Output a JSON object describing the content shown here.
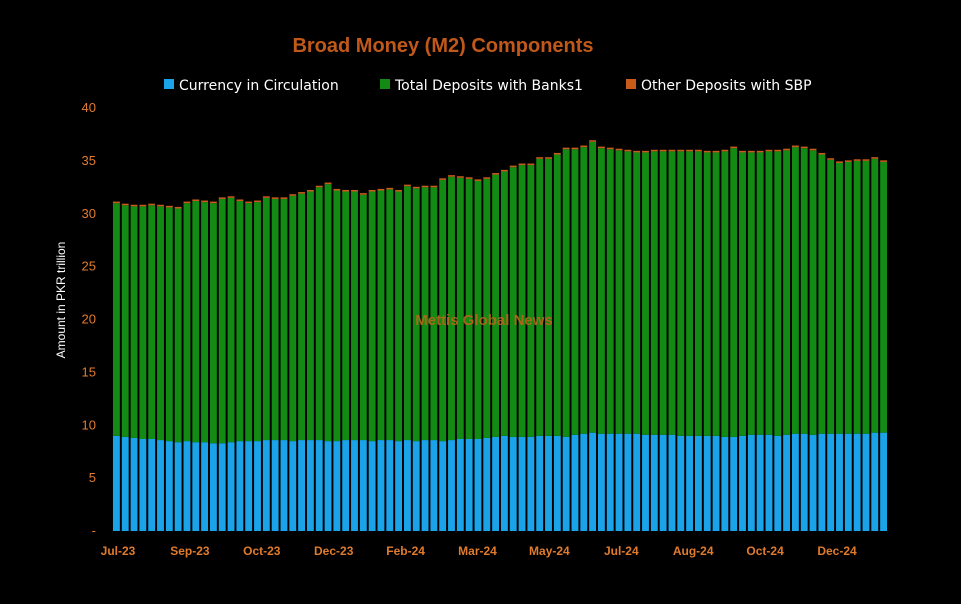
{
  "colors": {
    "background": "#000000",
    "plot_area": "#000000",
    "title": "#c0581a",
    "tick_labels": "#e07b2e",
    "currency": "#1aa3e8",
    "deposits": "#138a13",
    "sbp": "#c85a1a",
    "watermark": "#b8661a"
  },
  "watermark": "Mettis Global News",
  "chart_data": {
    "type": "bar",
    "stacked": true,
    "title": "Broad Money (M2) Components",
    "ylabel": "Amount in PKR trillion",
    "xlabel": "",
    "ylim": [
      0,
      40
    ],
    "yticks": [
      "-",
      "5",
      "10",
      "15",
      "20",
      "25",
      "30",
      "35",
      "40"
    ],
    "xtick_labels": [
      "Jul-23",
      "Sep-23",
      "Oct-23",
      "Dec-23",
      "Feb-24",
      "Mar-24",
      "May-24",
      "Jul-24",
      "Aug-24",
      "Oct-24",
      "Dec-24"
    ],
    "grid": false,
    "legend_position": "top",
    "series": [
      {
        "name": "Currency in Circulation",
        "values": [
          9.0,
          8.9,
          8.8,
          8.7,
          8.7,
          8.6,
          8.5,
          8.4,
          8.5,
          8.4,
          8.4,
          8.3,
          8.3,
          8.4,
          8.5,
          8.5,
          8.5,
          8.6,
          8.6,
          8.6,
          8.5,
          8.6,
          8.6,
          8.6,
          8.5,
          8.5,
          8.6,
          8.6,
          8.6,
          8.5,
          8.6,
          8.6,
          8.5,
          8.6,
          8.5,
          8.6,
          8.6,
          8.5,
          8.6,
          8.7,
          8.7,
          8.7,
          8.8,
          8.9,
          9.0,
          8.9,
          8.9,
          8.9,
          9.0,
          9.0,
          9.0,
          8.9,
          9.1,
          9.2,
          9.3,
          9.2,
          9.2,
          9.2,
          9.2,
          9.2,
          9.1,
          9.1,
          9.1,
          9.1,
          9.0,
          9.0,
          9.0,
          9.0,
          9.0,
          8.9,
          8.9,
          9.0,
          9.1,
          9.1,
          9.1,
          9.0,
          9.1,
          9.2,
          9.2,
          9.1,
          9.2,
          9.2,
          9.2,
          9.2,
          9.2,
          9.2,
          9.3,
          9.3
        ]
      },
      {
        "name": "Total Deposits with Banks1",
        "values": [
          22.0,
          21.9,
          21.9,
          22.0,
          22.1,
          22.1,
          22.1,
          22.1,
          22.5,
          22.8,
          22.7,
          22.7,
          23.1,
          23.1,
          22.7,
          22.5,
          22.6,
          22.9,
          22.8,
          22.8,
          23.2,
          23.3,
          23.5,
          23.9,
          24.3,
          23.7,
          23.5,
          23.5,
          23.2,
          23.6,
          23.6,
          23.7,
          23.6,
          24.0,
          23.9,
          23.9,
          23.9,
          24.7,
          24.9,
          24.7,
          24.6,
          24.4,
          24.5,
          24.8,
          25.0,
          25.5,
          25.7,
          25.7,
          26.2,
          26.2,
          26.6,
          27.2,
          27.0,
          27.1,
          27.5,
          27.0,
          26.9,
          26.8,
          26.7,
          26.6,
          26.7,
          26.8,
          26.8,
          26.8,
          26.9,
          26.9,
          26.9,
          26.8,
          26.8,
          27.0,
          27.3,
          26.8,
          26.7,
          26.7,
          26.8,
          26.9,
          26.9,
          27.1,
          27.0,
          26.9,
          26.4,
          25.9,
          25.6,
          25.7,
          25.8,
          25.8,
          25.9,
          25.6
        ]
      },
      {
        "name": "Other Deposits with SBP",
        "values": [
          0.15,
          0.15,
          0.15,
          0.15,
          0.15,
          0.15,
          0.15,
          0.15,
          0.15,
          0.15,
          0.15,
          0.15,
          0.15,
          0.15,
          0.15,
          0.15,
          0.15,
          0.15,
          0.15,
          0.15,
          0.15,
          0.15,
          0.15,
          0.15,
          0.15,
          0.15,
          0.15,
          0.15,
          0.15,
          0.15,
          0.15,
          0.15,
          0.15,
          0.15,
          0.15,
          0.15,
          0.15,
          0.15,
          0.15,
          0.15,
          0.15,
          0.15,
          0.15,
          0.15,
          0.15,
          0.15,
          0.15,
          0.15,
          0.15,
          0.15,
          0.15,
          0.15,
          0.15,
          0.15,
          0.15,
          0.15,
          0.15,
          0.15,
          0.15,
          0.15,
          0.15,
          0.15,
          0.15,
          0.15,
          0.15,
          0.15,
          0.15,
          0.15,
          0.15,
          0.15,
          0.15,
          0.15,
          0.15,
          0.15,
          0.15,
          0.15,
          0.15,
          0.15,
          0.15,
          0.15,
          0.15,
          0.15,
          0.15,
          0.15,
          0.15,
          0.15,
          0.15,
          0.15
        ]
      }
    ]
  }
}
